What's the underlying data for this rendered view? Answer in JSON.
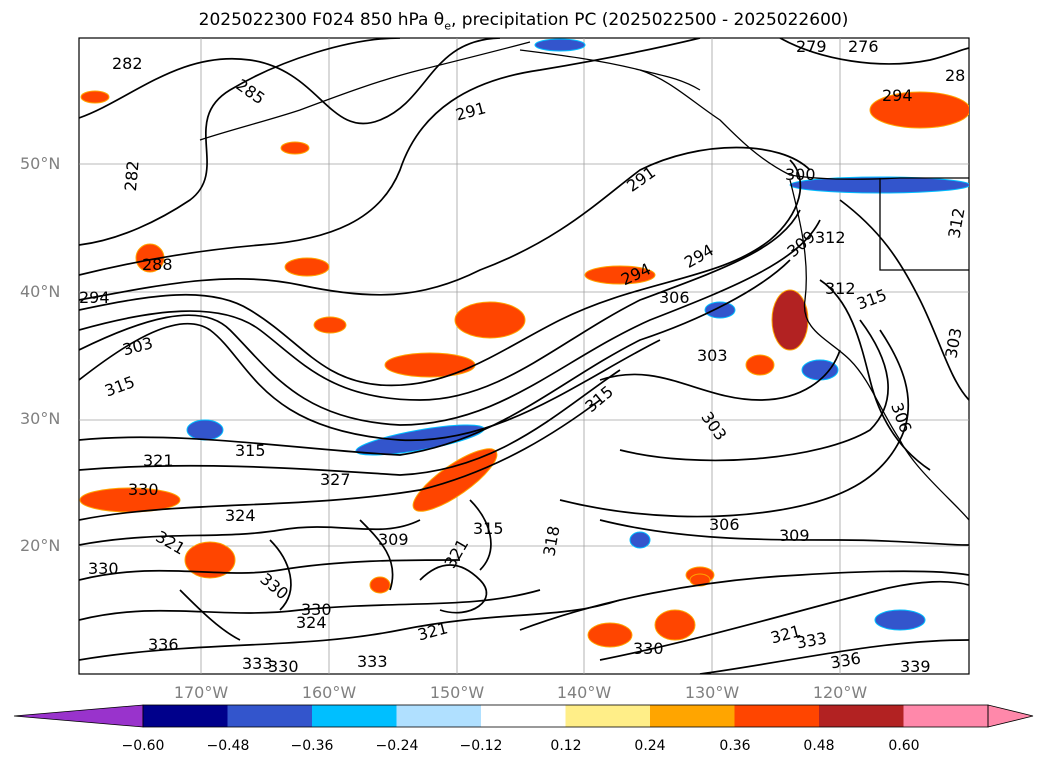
{
  "title_main": "2025022300 F024 850 hPa θ",
  "title_sub": "e",
  "title_rest": ", precipitation PC (2025022500 - 2025022600)",
  "lat_labels": [
    "50°N",
    "40°N",
    "30°N",
    "20°N"
  ],
  "lon_labels": [
    "170°W",
    "160°W",
    "150°W",
    "140°W",
    "130°W",
    "120°W"
  ],
  "colorbar": {
    "ticks": [
      "−0.60",
      "−0.48",
      "−0.36",
      "−0.24",
      "−0.12",
      "0.12",
      "0.24",
      "0.36",
      "0.48",
      "0.60"
    ],
    "colors": [
      "#9933cc",
      "#00008b",
      "#3355cc",
      "#00bfff",
      "#b0e0ff",
      "#ffffff",
      "#ffee88",
      "#ffa500",
      "#ff4500",
      "#b22222",
      "#ff88aa",
      "#ffffff"
    ]
  },
  "contour_labels": [
    "282",
    "285",
    "291",
    "279",
    "276",
    "28",
    "294",
    "288",
    "294",
    "303",
    "315",
    "321",
    "330",
    "324",
    "321",
    "330",
    "327",
    "315",
    "330",
    "324",
    "321",
    "336",
    "333",
    "330",
    "333",
    "294",
    "294",
    "306",
    "303",
    "309",
    "312",
    "312",
    "315",
    "303",
    "306",
    "309",
    "336",
    "339",
    "330",
    "315",
    "318",
    "321",
    "300",
    "330",
    "333",
    "321",
    "291",
    "282",
    "309",
    "315",
    "303",
    "306",
    "312"
  ]
}
